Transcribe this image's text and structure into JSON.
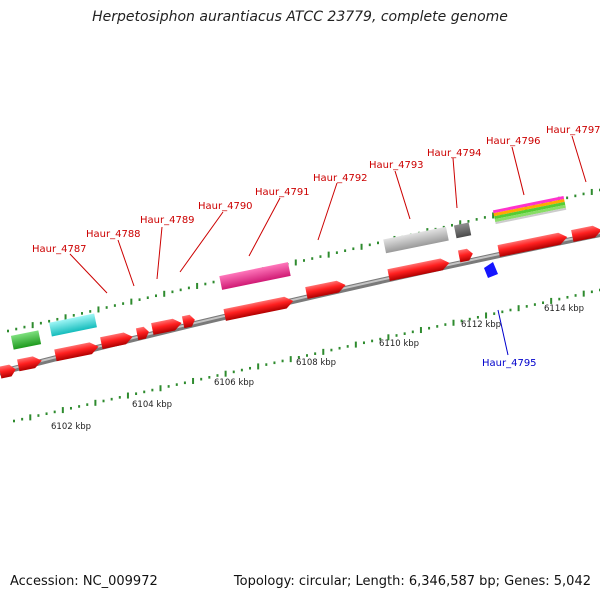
{
  "title": "Herpetosiphon aurantiacus ATCC 23779, complete genome",
  "footer": {
    "accession": "Accession: NC_009972",
    "topology": "Topology: circular; Length: 6,346,587 bp; Genes: 5,042"
  },
  "colors": {
    "red_gene": "#ff2020",
    "tick": "#2e8b2e",
    "backbone": "#9a9a9a",
    "label_red": "#cc0000",
    "label_blue": "#0000cc",
    "green_feature": "#33cc33",
    "cyan_feature": "#22e6e6",
    "pink_feature": "#ff3399",
    "gray_feature": "#bdbdbd",
    "dark_feature": "#666666",
    "blue_marker": "#1515ff"
  },
  "scale_labels": [
    "6102 kbp",
    "6104 kbp",
    "6106 kbp",
    "6108 kbp",
    "6110 kbp",
    "6112 kbp",
    "6114 kbp"
  ],
  "gene_labels": [
    {
      "text": "Haur_4787",
      "color": "red"
    },
    {
      "text": "Haur_4788",
      "color": "red"
    },
    {
      "text": "Haur_4789",
      "color": "red"
    },
    {
      "text": "Haur_4790",
      "color": "red"
    },
    {
      "text": "Haur_4791",
      "color": "red"
    },
    {
      "text": "Haur_4792",
      "color": "red"
    },
    {
      "text": "Haur_4793",
      "color": "red"
    },
    {
      "text": "Haur_4794",
      "color": "red"
    },
    {
      "text": "Haur_4796",
      "color": "red"
    },
    {
      "text": "Haur_4797",
      "color": "red"
    },
    {
      "text": "Haur_4795",
      "color": "blue"
    }
  ]
}
